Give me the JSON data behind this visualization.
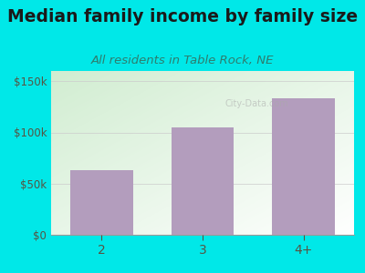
{
  "title": "Median family income by family size",
  "subtitle": "All residents in Table Rock, NE",
  "categories": [
    "2",
    "3",
    "4+"
  ],
  "values": [
    63000,
    105000,
    133000
  ],
  "bar_color": "#b39dbd",
  "background_color": "#00e8e8",
  "title_color": "#1a1a1a",
  "subtitle_color": "#2e7d6e",
  "tick_color": "#555544",
  "ylim": [
    0,
    160000
  ],
  "yticks": [
    0,
    50000,
    100000,
    150000
  ],
  "ytick_labels": [
    "$0",
    "$50k",
    "$100k",
    "$150k"
  ],
  "title_fontsize": 13.5,
  "subtitle_fontsize": 9.5,
  "watermark": "City-Data.com",
  "bar_width": 0.62
}
